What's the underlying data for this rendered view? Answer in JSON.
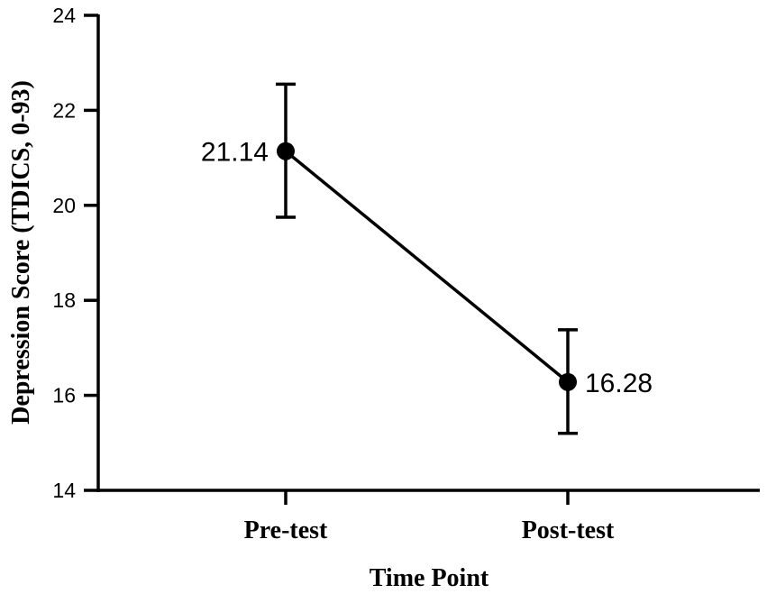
{
  "chart_data": {
    "type": "line",
    "xlabel": "Time Point",
    "ylabel": "Depression Score (TDICS, 0-93)",
    "categories": [
      "Pre-test",
      "Post-test"
    ],
    "series": [
      {
        "values": [
          21.14,
          16.28
        ],
        "error_low": [
          19.75,
          15.2
        ],
        "error_high": [
          22.55,
          17.38
        ],
        "data_labels": [
          "21.14",
          "16.28"
        ]
      }
    ],
    "ylim": [
      14,
      24
    ],
    "y_ticks": [
      14,
      16,
      18,
      20,
      22,
      24
    ],
    "y_tick_labels": [
      "14",
      "16",
      "18",
      "20",
      "22",
      "24"
    ],
    "grid": false,
    "legend": "none",
    "colors": {
      "series": "#000000",
      "axes": "#000000",
      "background": "#ffffff"
    }
  }
}
